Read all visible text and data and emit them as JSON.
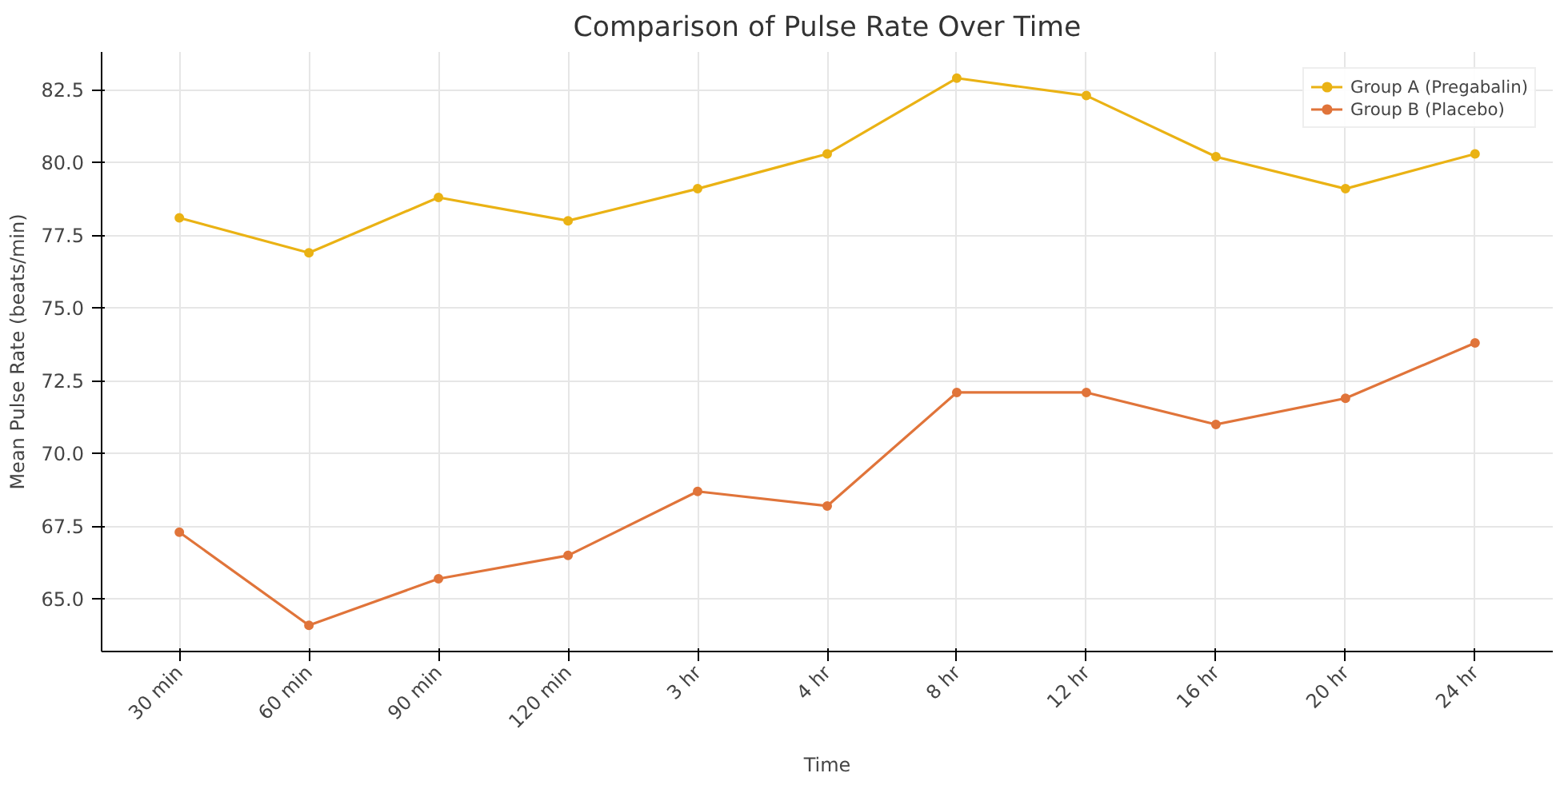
{
  "chart_data": {
    "type": "line",
    "title": "Comparison of Pulse Rate Over Time",
    "xlabel": "Time",
    "ylabel": "Mean Pulse Rate (beats/min)",
    "categories": [
      "30 min",
      "60 min",
      "90 min",
      "120 min",
      "3 hr",
      "4 hr",
      "8 hr",
      "12 hr",
      "16 hr",
      "20 hr",
      "24 hr"
    ],
    "series": [
      {
        "name": "Group A (Pregabalin)",
        "color": "#eab214",
        "values": [
          78.1,
          76.9,
          78.8,
          78.0,
          79.1,
          80.3,
          82.9,
          82.3,
          80.2,
          79.1,
          80.3
        ]
      },
      {
        "name": "Group B (Placebo)",
        "color": "#e0743a",
        "values": [
          67.3,
          64.1,
          65.7,
          66.5,
          68.7,
          68.2,
          72.1,
          72.1,
          71.0,
          71.9,
          73.8
        ]
      }
    ],
    "ylim": [
      63.2,
      83.8
    ],
    "yticks": [
      {
        "value": 65,
        "label": "65.0"
      },
      {
        "value": 67.5,
        "label": "67.5"
      },
      {
        "value": 70,
        "label": "70.0"
      },
      {
        "value": 72.5,
        "label": "72.5"
      },
      {
        "value": 75,
        "label": "75.0"
      },
      {
        "value": 77.5,
        "label": "77.5"
      },
      {
        "value": 80,
        "label": "80.0"
      },
      {
        "value": 82.5,
        "label": "82.5"
      }
    ],
    "grid": true,
    "legend": "top right",
    "marker": "circle",
    "line_style": "solid"
  }
}
